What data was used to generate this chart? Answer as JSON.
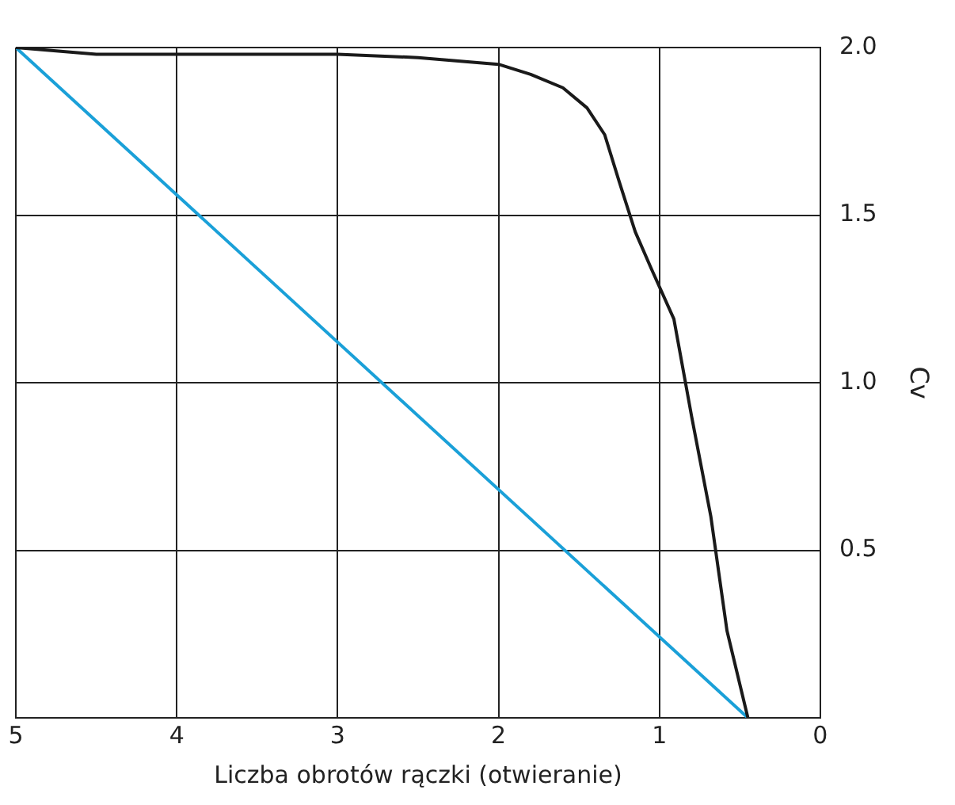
{
  "chart_data": {
    "type": "line",
    "xlabel": "Liczba obrotów rączki (otwieranie)",
    "ylabel": "Cv",
    "xlim": [
      5,
      0
    ],
    "xticks": [
      5,
      4,
      3,
      2,
      1,
      0
    ],
    "ylim": [
      0,
      2.0
    ],
    "yticks": [
      {
        "value": 0.5,
        "label": "0.5"
      },
      {
        "value": 1,
        "label": "1.0"
      },
      {
        "value": 1.5,
        "label": "1.5"
      },
      {
        "value": 2,
        "label": "2.0"
      }
    ],
    "grid": true,
    "legend": false,
    "marker": "none",
    "line_style": "solid",
    "series": [
      {
        "color": "#1a1a1a",
        "x": [
          5,
          4.5,
          4,
          3.5,
          3,
          2.5,
          2,
          1.8,
          1.6,
          1.45,
          1.34,
          1.25,
          1.15,
          1.05,
          0.91,
          0.8,
          0.68,
          0.58,
          0.5,
          0.45
        ],
        "values": [
          2.0,
          1.98,
          1.98,
          1.98,
          1.98,
          1.97,
          1.95,
          1.92,
          1.88,
          1.82,
          1.74,
          1.6,
          1.45,
          1.34,
          1.19,
          0.9,
          0.6,
          0.26,
          0.1,
          0
        ]
      },
      {
        "color": "#1aa0d8",
        "x": [
          5,
          0.45
        ],
        "values": [
          2.0,
          0
        ]
      }
    ]
  }
}
